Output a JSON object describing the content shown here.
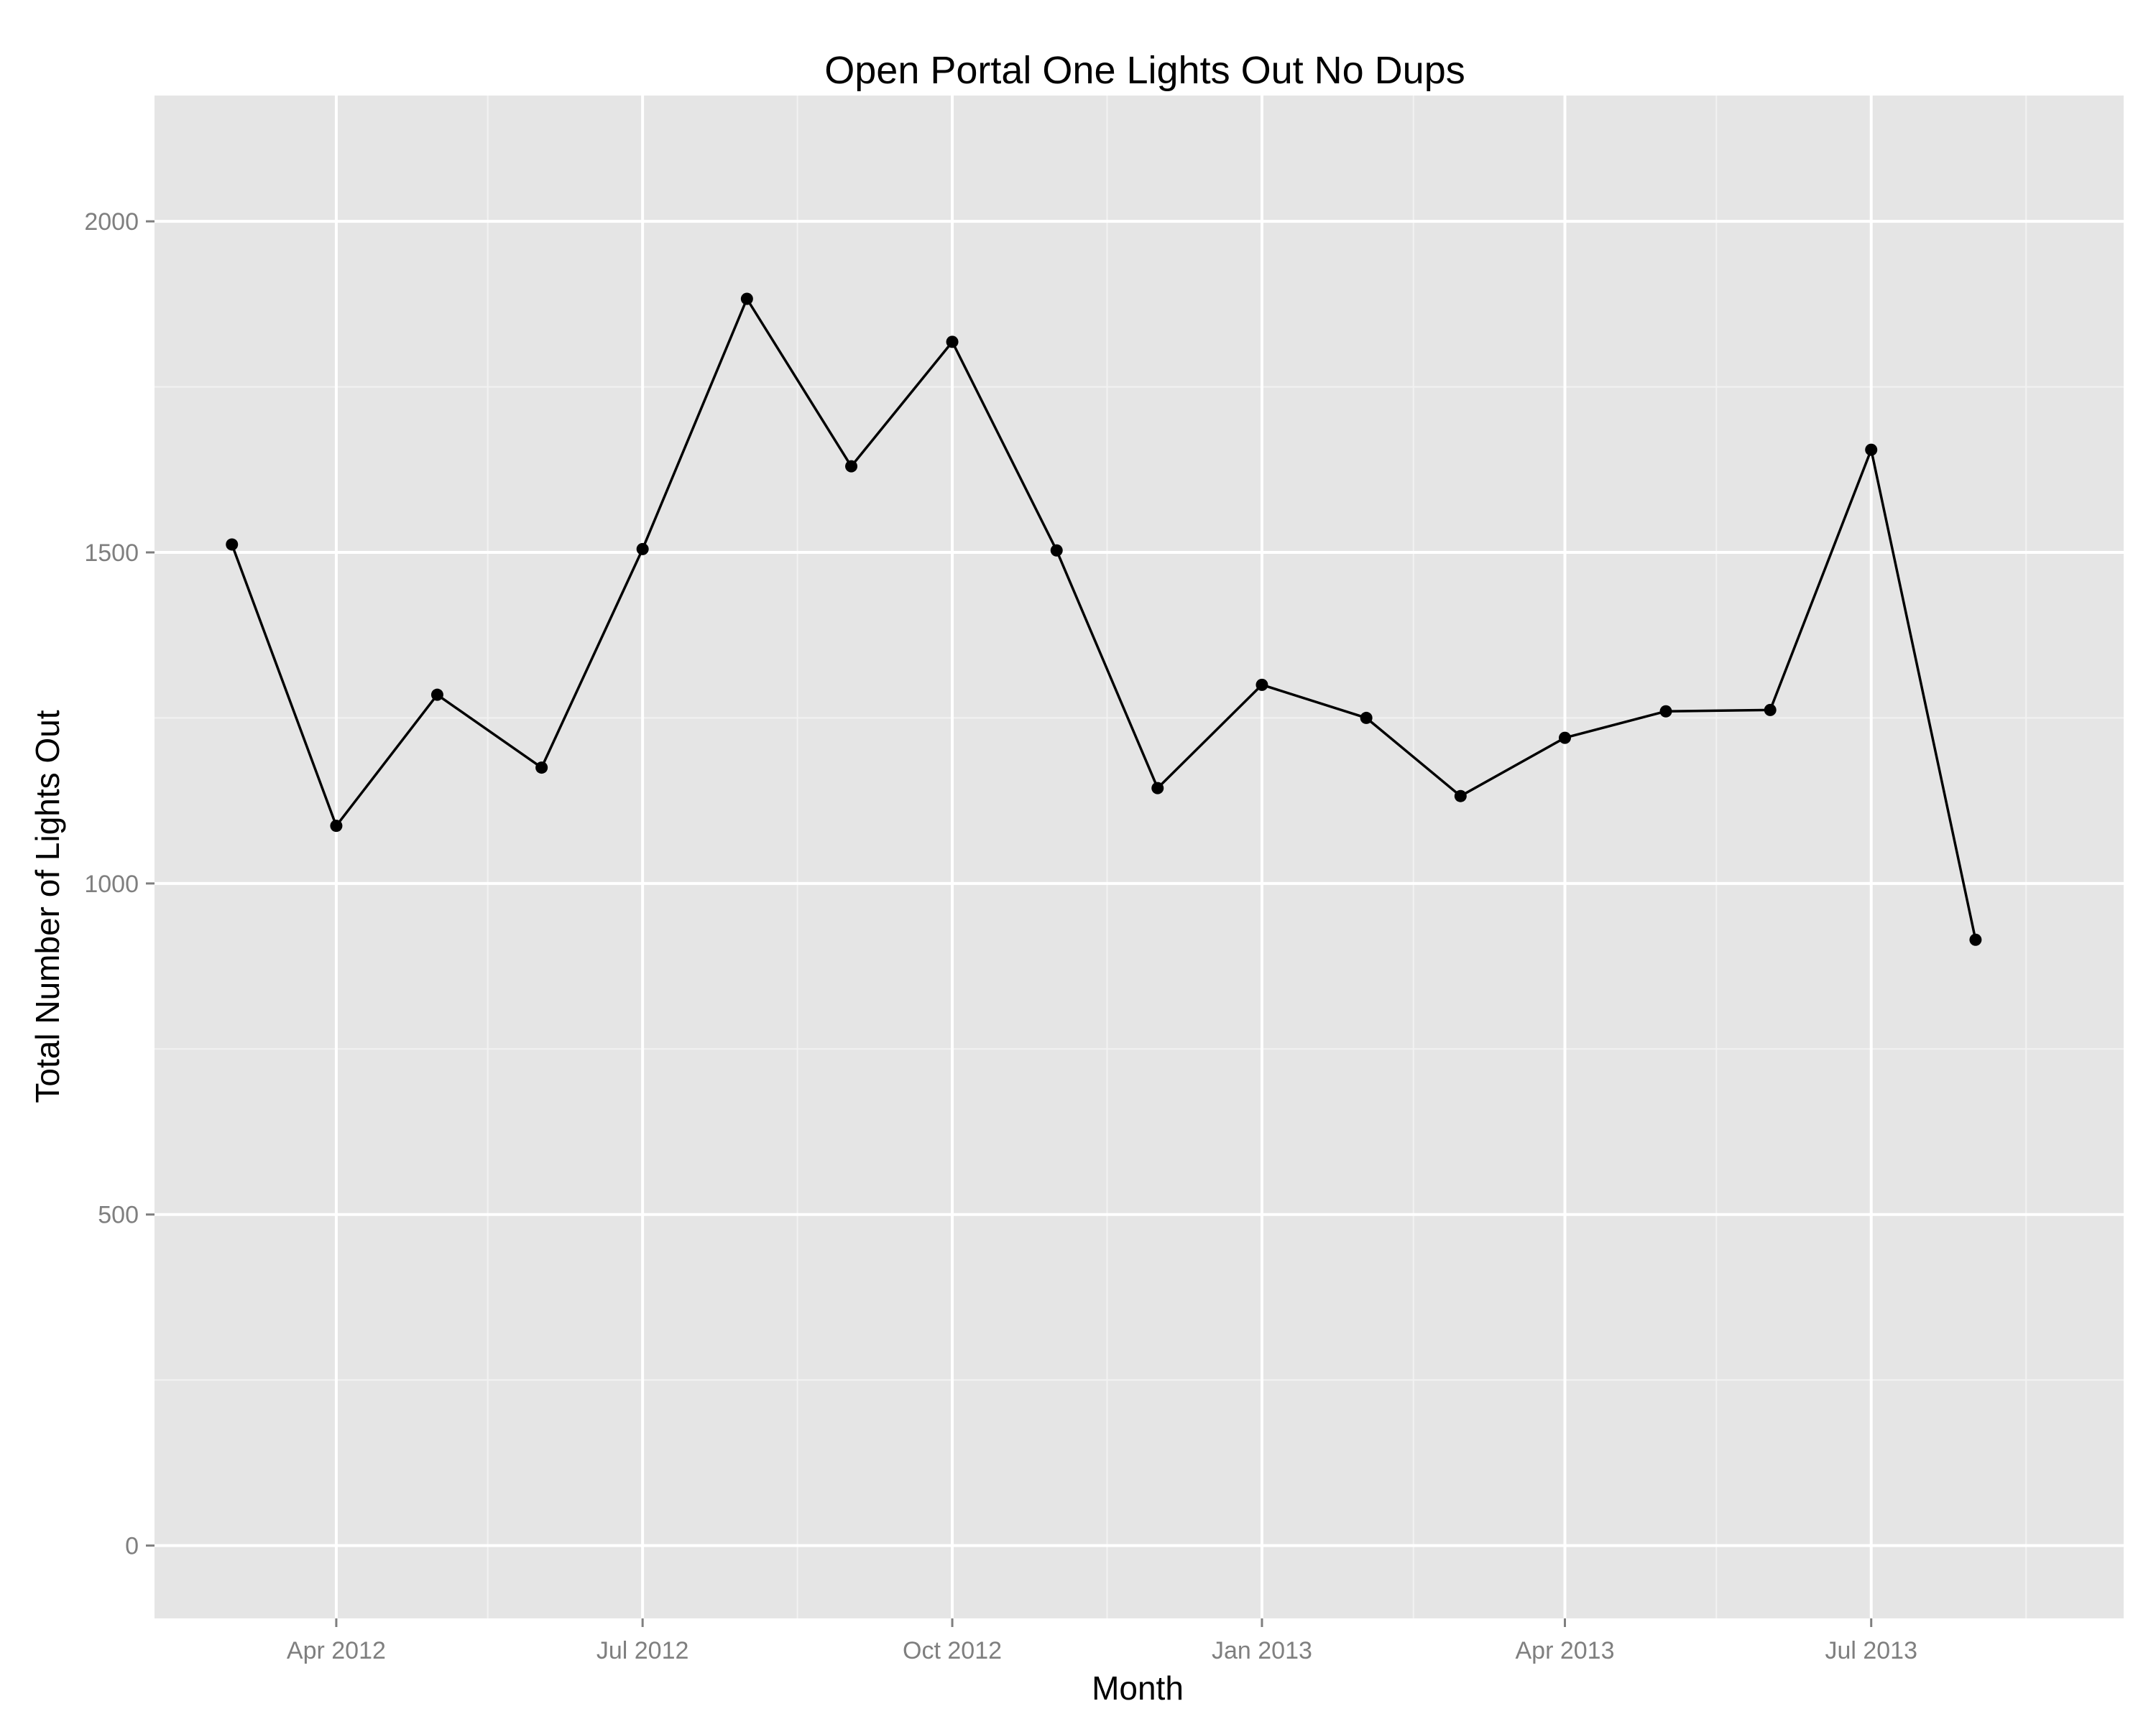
{
  "chart_data": {
    "type": "line",
    "title": "Open Portal One Lights Out No Dups",
    "xlabel": "Month",
    "ylabel": "Total Number of Lights Out",
    "x_axis": {
      "type": "date",
      "range": [
        "2012-02-07",
        "2013-09-14"
      ],
      "ticks": [
        {
          "date": "2012-04-01",
          "label": "Apr 2012"
        },
        {
          "date": "2012-07-01",
          "label": "Jul 2012"
        },
        {
          "date": "2012-10-01",
          "label": "Oct 2012"
        },
        {
          "date": "2013-01-01",
          "label": "Jan 2013"
        },
        {
          "date": "2013-04-01",
          "label": "Apr 2013"
        },
        {
          "date": "2013-07-01",
          "label": "Jul 2013"
        }
      ],
      "minor_ticks": [
        "2012-05-16",
        "2012-08-16",
        "2012-11-16",
        "2013-02-15",
        "2013-05-16",
        "2013-08-16"
      ]
    },
    "y_axis": {
      "range": [
        -110,
        2190
      ],
      "ticks": [
        0,
        500,
        1000,
        1500,
        2000
      ],
      "minor_ticks": [
        250,
        750,
        1250,
        1750
      ]
    },
    "grid": true,
    "colors": {
      "panel": "#e5e5e5",
      "grid_major": "#ffffff",
      "grid_minor": "#f2f2f2",
      "line": "#000000",
      "point": "#000000"
    },
    "series": [
      {
        "x": [
          "2012-03-01",
          "2012-04-01",
          "2012-05-01",
          "2012-06-01",
          "2012-07-01",
          "2012-08-01",
          "2012-09-01",
          "2012-10-01",
          "2012-11-01",
          "2012-12-01",
          "2013-01-01",
          "2013-02-01",
          "2013-03-01",
          "2013-04-01",
          "2013-05-01",
          "2013-06-01",
          "2013-07-01",
          "2013-08-01"
        ],
        "y": [
          1512,
          1087,
          1285,
          1175,
          1505,
          1883,
          1630,
          1818,
          1503,
          1144,
          1300,
          1250,
          1132,
          1220,
          1260,
          1262,
          1655,
          915
        ]
      }
    ]
  }
}
